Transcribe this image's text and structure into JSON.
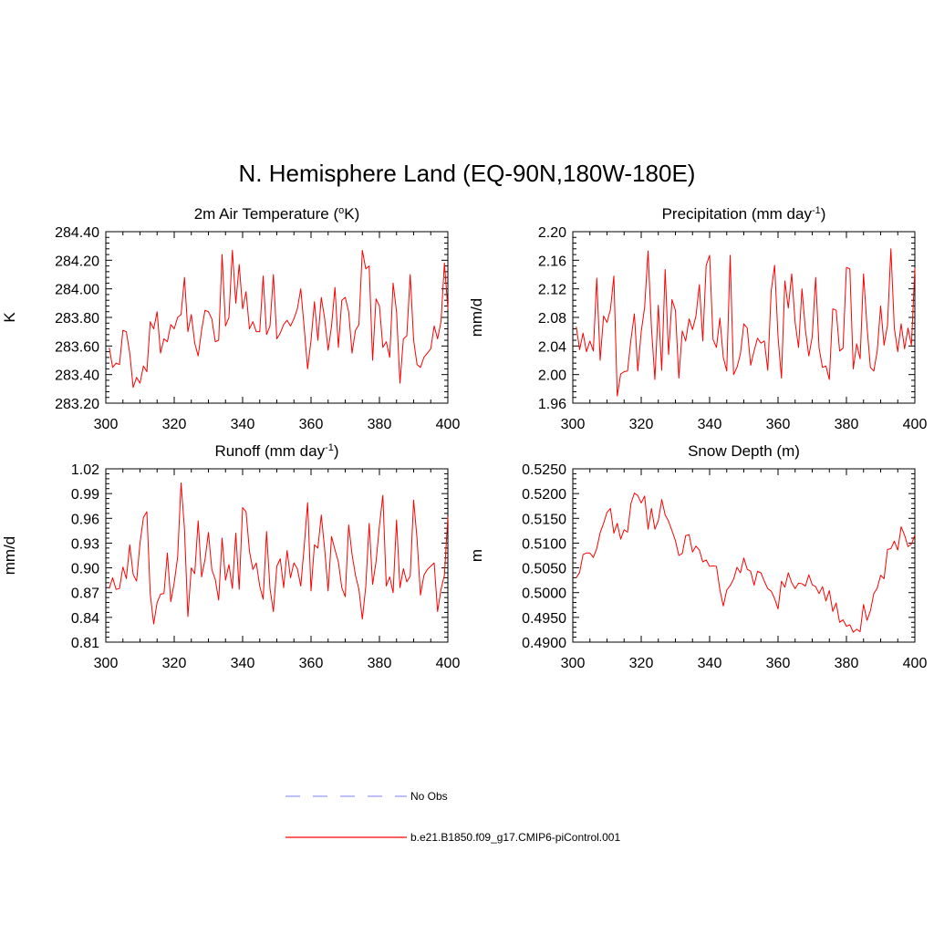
{
  "title": "N. Hemisphere Land (EQ-90N,180W-180E)",
  "series_color": "#ff0000",
  "obs_color": "#9999ff",
  "legend": {
    "entries": [
      {
        "label": "No Obs",
        "style": "dashed",
        "color": "#9999ff"
      },
      {
        "label": "b.e21.B1850.f09_g17.CMIP6-piControl.001",
        "style": "solid",
        "color": "#ff0000"
      }
    ]
  },
  "chart_data": [
    {
      "type": "line",
      "title": "2m Air Temperature (",
      "title_sup": "o",
      "title_suffix": "K)",
      "ylabel": "K",
      "xlabel": "",
      "xlim": [
        300,
        400
      ],
      "ylim": [
        283.2,
        284.4
      ],
      "xticks": [
        300,
        320,
        340,
        360,
        380,
        400
      ],
      "yticks": [
        283.2,
        283.4,
        283.6,
        283.8,
        284.0,
        284.2,
        284.4
      ],
      "ytick_labels": [
        "283.20",
        "283.40",
        "283.60",
        "283.80",
        "284.00",
        "284.20",
        "284.40"
      ],
      "x_start": 301,
      "values": [
        283.59,
        283.45,
        283.48,
        283.47,
        283.71,
        283.7,
        283.55,
        283.31,
        283.38,
        283.34,
        283.46,
        283.42,
        283.77,
        283.72,
        283.84,
        283.55,
        283.65,
        283.63,
        283.75,
        283.72,
        283.8,
        283.82,
        284.08,
        283.7,
        283.82,
        283.62,
        283.53,
        283.71,
        283.85,
        283.84,
        283.79,
        283.63,
        283.64,
        284.24,
        283.74,
        283.8,
        284.27,
        283.9,
        284.17,
        283.86,
        283.98,
        283.72,
        283.77,
        283.7,
        283.7,
        284.09,
        283.68,
        283.74,
        284.1,
        283.65,
        283.69,
        283.75,
        283.78,
        283.74,
        283.79,
        283.86,
        284.0,
        283.73,
        283.44,
        283.64,
        283.91,
        283.64,
        283.94,
        283.79,
        283.57,
        283.74,
        284.01,
        283.59,
        283.92,
        283.94,
        283.84,
        283.55,
        283.71,
        283.75,
        284.27,
        284.14,
        284.16,
        283.5,
        283.93,
        283.88,
        283.59,
        283.63,
        283.52,
        284.04,
        283.84,
        283.34,
        283.65,
        283.67,
        284.1,
        283.64,
        283.47,
        283.45,
        283.52,
        283.55,
        283.58,
        283.74,
        283.65,
        283.77,
        284.18,
        283.86
      ]
    },
    {
      "type": "line",
      "title": "Precipitation (mm day",
      "title_sup": "-1",
      "title_suffix": ")",
      "ylabel": "mm/d",
      "xlabel": "",
      "xlim": [
        300,
        400
      ],
      "ylim": [
        1.96,
        2.2
      ],
      "xticks": [
        300,
        320,
        340,
        360,
        380,
        400
      ],
      "yticks": [
        1.96,
        2.0,
        2.04,
        2.08,
        2.12,
        2.16,
        2.2
      ],
      "ytick_labels": [
        "1.96",
        "2.00",
        "2.04",
        "2.08",
        "2.12",
        "2.16",
        "2.20"
      ],
      "x_start": 301,
      "values": [
        2.067,
        2.035,
        2.058,
        2.032,
        2.047,
        2.033,
        2.135,
        2.02,
        2.082,
        2.073,
        2.091,
        2.138,
        1.97,
        2.001,
        2.004,
        2.005,
        2.049,
        2.085,
        2.005,
        2.06,
        2.094,
        2.173,
        2.065,
        1.993,
        2.097,
        2.006,
        2.147,
        2.028,
        2.105,
        2.09,
        1.995,
        2.061,
        2.047,
        2.078,
        2.063,
        2.082,
        2.126,
        2.047,
        2.153,
        2.167,
        2.049,
        2.038,
        2.079,
        2.024,
        2.005,
        2.167,
        2.0,
        2.01,
        2.029,
        2.071,
        2.065,
        2.013,
        2.033,
        2.051,
        2.044,
        2.047,
        2.006,
        2.117,
        2.153,
        2.053,
        1.995,
        2.131,
        2.093,
        2.141,
        2.073,
        2.038,
        2.12,
        2.063,
        2.026,
        2.053,
        2.136,
        2.037,
        2.01,
        2.012,
        1.993,
        2.092,
        2.09,
        2.033,
        2.037,
        2.15,
        2.148,
        2.008,
        2.043,
        2.022,
        2.141,
        2.068,
        2.01,
        2.005,
        2.033,
        2.096,
        2.041,
        2.069,
        2.176,
        2.065,
        2.032,
        2.071,
        2.036,
        2.065,
        2.041,
        2.149
      ]
    },
    {
      "type": "line",
      "title": "Runoff (mm day",
      "title_sup": "-1",
      "title_suffix": ")",
      "ylabel": "mm/d",
      "xlabel": "",
      "xlim": [
        300,
        400
      ],
      "ylim": [
        0.81,
        1.02
      ],
      "xticks": [
        300,
        320,
        340,
        360,
        380,
        400
      ],
      "yticks": [
        0.81,
        0.84,
        0.87,
        0.9,
        0.93,
        0.96,
        0.99,
        1.02
      ],
      "ytick_labels": [
        "0.81",
        "0.84",
        "0.87",
        "0.90",
        "0.93",
        "0.96",
        "0.99",
        "1.02"
      ],
      "x_start": 301,
      "values": [
        0.875,
        0.888,
        0.874,
        0.875,
        0.901,
        0.887,
        0.928,
        0.892,
        0.884,
        0.93,
        0.961,
        0.968,
        0.868,
        0.832,
        0.858,
        0.868,
        0.869,
        0.918,
        0.859,
        0.882,
        0.913,
        1.003,
        0.947,
        0.841,
        0.9,
        0.893,
        0.957,
        0.889,
        0.91,
        0.943,
        0.898,
        0.886,
        0.861,
        0.936,
        0.885,
        0.904,
        0.875,
        0.942,
        0.874,
        0.973,
        0.968,
        0.92,
        0.898,
        0.906,
        0.878,
        0.862,
        0.944,
        0.875,
        0.847,
        0.902,
        0.911,
        0.876,
        0.921,
        0.888,
        0.906,
        0.899,
        0.878,
        0.926,
        0.979,
        0.872,
        0.928,
        0.924,
        0.964,
        0.922,
        0.872,
        0.938,
        0.922,
        0.907,
        0.876,
        0.865,
        0.952,
        0.916,
        0.891,
        0.874,
        0.838,
        0.877,
        0.954,
        0.88,
        0.907,
        0.951,
        0.988,
        0.878,
        0.889,
        0.87,
        0.958,
        0.876,
        0.899,
        0.883,
        0.89,
        0.982,
        0.935,
        0.867,
        0.891,
        0.898,
        0.902,
        0.906,
        0.847,
        0.874,
        0.891,
        0.962
      ]
    },
    {
      "type": "line",
      "title": "Snow Depth (m)",
      "title_sup": "",
      "title_suffix": "",
      "ylabel": "m",
      "xlabel": "",
      "xlim": [
        300,
        400
      ],
      "ylim": [
        0.49,
        0.525
      ],
      "xticks": [
        300,
        320,
        340,
        360,
        380,
        400
      ],
      "yticks": [
        0.49,
        0.495,
        0.5,
        0.505,
        0.51,
        0.515,
        0.52,
        0.525
      ],
      "ytick_labels": [
        "0.4900",
        "0.4950",
        "0.5000",
        "0.5050",
        "0.5100",
        "0.5150",
        "0.5200",
        "0.5250"
      ],
      "x_start": 301,
      "values": [
        0.503,
        0.5041,
        0.5077,
        0.508,
        0.508,
        0.5071,
        0.5089,
        0.5121,
        0.514,
        0.5162,
        0.517,
        0.512,
        0.514,
        0.5108,
        0.5127,
        0.5122,
        0.518,
        0.5201,
        0.5196,
        0.5181,
        0.5195,
        0.5128,
        0.517,
        0.5128,
        0.5145,
        0.5188,
        0.5157,
        0.5144,
        0.5125,
        0.5105,
        0.5075,
        0.5079,
        0.5115,
        0.5117,
        0.5082,
        0.5094,
        0.5086,
        0.5062,
        0.5066,
        0.5053,
        0.5054,
        0.5053,
        0.5006,
        0.4973,
        0.5005,
        0.5014,
        0.5027,
        0.5051,
        0.504,
        0.507,
        0.5047,
        0.5043,
        0.5015,
        0.5043,
        0.504,
        0.5023,
        0.5008,
        0.5003,
        0.4988,
        0.4967,
        0.5023,
        0.5011,
        0.504,
        0.502,
        0.5008,
        0.5019,
        0.5018,
        0.5013,
        0.5036,
        0.5016,
        0.5012,
        0.4998,
        0.5012,
        0.4983,
        0.5004,
        0.4962,
        0.4979,
        0.494,
        0.4945,
        0.4932,
        0.4935,
        0.492,
        0.4926,
        0.4921,
        0.4976,
        0.4944,
        0.4963,
        0.4998,
        0.5009,
        0.5035,
        0.5028,
        0.5087,
        0.5089,
        0.5104,
        0.5086,
        0.5133,
        0.5116,
        0.5093,
        0.5098,
        0.5116
      ]
    }
  ]
}
